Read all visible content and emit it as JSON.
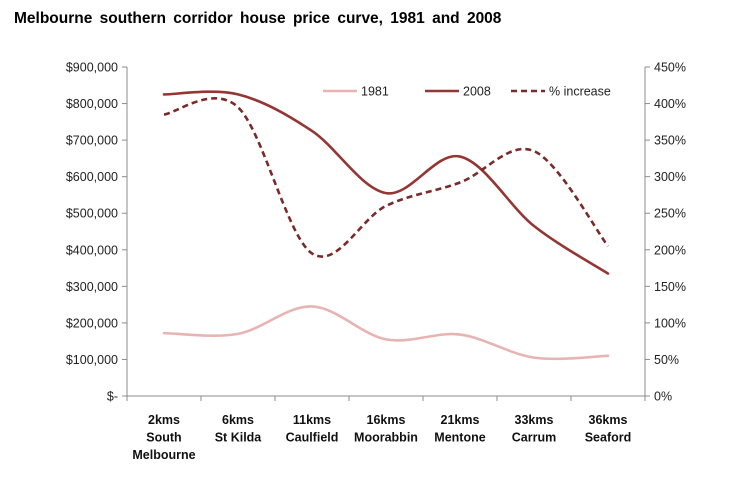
{
  "chart_data": {
    "type": "line",
    "title": "Melbourne southern corridor house price curve, 1981 and 2008",
    "categories": [
      [
        "2kms",
        "South",
        "Melbourne"
      ],
      [
        "6kms",
        "St Kilda"
      ],
      [
        "11kms",
        "Caulfield"
      ],
      [
        "16kms",
        "Moorabbin"
      ],
      [
        "21kms",
        "Mentone"
      ],
      [
        "33kms",
        "Carrum"
      ],
      [
        "36kms",
        "Seaford"
      ]
    ],
    "y_left": {
      "ticks": [
        0,
        100000,
        200000,
        300000,
        400000,
        500000,
        600000,
        700000,
        800000,
        900000
      ],
      "tick_labels": [
        "$-",
        "$100,000",
        "$200,000",
        "$300,000",
        "$400,000",
        "$500,000",
        "$600,000",
        "$700,000",
        "$800,000",
        "$900,000"
      ],
      "ylim": [
        0,
        900000
      ]
    },
    "y_right": {
      "ticks": [
        0,
        50,
        100,
        150,
        200,
        250,
        300,
        350,
        400,
        450
      ],
      "tick_labels": [
        "0%",
        "50%",
        "100%",
        "150%",
        "200%",
        "250%",
        "300%",
        "350%",
        "400%",
        "450%"
      ],
      "ylim": [
        0,
        450
      ]
    },
    "series": [
      {
        "name": "1981",
        "axis": "left",
        "color": "#e8b4b2",
        "dash": "solid",
        "values": [
          172000,
          170000,
          245000,
          155000,
          168000,
          105000,
          110000
        ]
      },
      {
        "name": "2008",
        "axis": "left",
        "color": "#943634",
        "dash": "solid",
        "values": [
          825000,
          825000,
          725000,
          555000,
          655000,
          465000,
          335000
        ]
      },
      {
        "name": "% increase",
        "axis": "right",
        "color": "#7a2a28",
        "dash": "dashed",
        "values": [
          385,
          395,
          195,
          260,
          292,
          335,
          205
        ]
      }
    ],
    "legend_position": "top-right",
    "grid": false
  }
}
